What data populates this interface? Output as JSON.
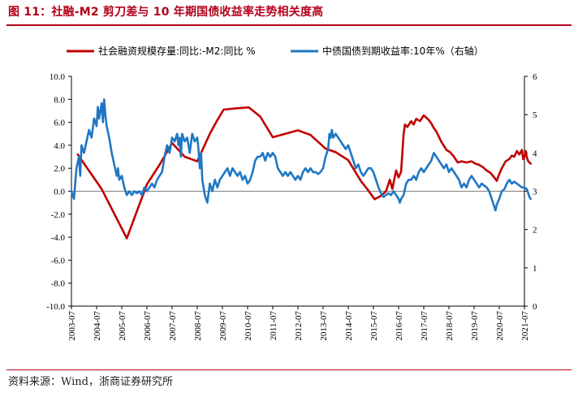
{
  "header": {
    "title": "图 11：社融-M2 剪刀差与 10 年期国债收益率走势相关度高"
  },
  "footer": {
    "source": "资料来源：Wind，浙商证券研究所"
  },
  "colors": {
    "series1": "#c00000",
    "series2": "#1f77c4",
    "title": "#b3001b"
  },
  "chart_data": {
    "type": "line",
    "title": "社融-M2 剪刀差与 10 年期国债收益率走势相关度高",
    "legend_position": "top",
    "x_tick_labels": [
      "2003-07",
      "2004-07",
      "2005-07",
      "2006-07",
      "2007-07",
      "2008-07",
      "2009-07",
      "2010-07",
      "2011-07",
      "2012-07",
      "2013-07",
      "2014-07",
      "2015-07",
      "2016-07",
      "2017-07",
      "2018-07",
      "2019-07",
      "2020-07",
      "2021-07"
    ],
    "xlim": [
      2003.5,
      2021.5
    ],
    "y_left": {
      "ylim": [
        -10,
        10
      ],
      "ticks": [
        "10.0",
        "8.0",
        "6.0",
        "4.0",
        "2.0",
        "0.0",
        "-2.0",
        "-4.0",
        "-6.0",
        "-8.0",
        "-10.0"
      ]
    },
    "y_right": {
      "ylim": [
        0,
        6
      ],
      "ticks": [
        "6",
        "5",
        "4",
        "3",
        "2",
        "1",
        "0"
      ]
    },
    "series": [
      {
        "name": "社会融资规模存量:同比:-M2:同比 %",
        "axis": "left",
        "color": "#c00000",
        "points": [
          [
            2003.75,
            3.2
          ],
          [
            2004.7,
            0.2
          ],
          [
            2005.7,
            -4.1
          ],
          [
            2006.5,
            0.6
          ],
          [
            2007.0,
            2.3
          ],
          [
            2007.5,
            4.2
          ],
          [
            2008.0,
            3.0
          ],
          [
            2008.5,
            2.6
          ],
          [
            2009.0,
            5.0
          ],
          [
            2009.3,
            6.2
          ],
          [
            2009.55,
            7.1
          ],
          [
            2010.0,
            7.2
          ],
          [
            2010.55,
            7.3
          ],
          [
            2011.0,
            6.5
          ],
          [
            2011.5,
            4.7
          ],
          [
            2012.0,
            5.0
          ],
          [
            2012.5,
            5.3
          ],
          [
            2013.0,
            4.9
          ],
          [
            2013.6,
            3.7
          ],
          [
            2014.0,
            3.4
          ],
          [
            2014.5,
            2.7
          ],
          [
            2015.0,
            0.9
          ],
          [
            2015.25,
            0.2
          ],
          [
            2015.55,
            -0.7
          ],
          [
            2015.8,
            -0.4
          ],
          [
            2016.0,
            0.0
          ],
          [
            2016.15,
            1.0
          ],
          [
            2016.25,
            0.2
          ],
          [
            2016.4,
            1.8
          ],
          [
            2016.5,
            1.2
          ],
          [
            2016.6,
            1.7
          ],
          [
            2016.7,
            5.0
          ],
          [
            2016.75,
            5.8
          ],
          [
            2016.85,
            5.6
          ],
          [
            2017.0,
            6.1
          ],
          [
            2017.1,
            5.8
          ],
          [
            2017.2,
            6.3
          ],
          [
            2017.35,
            6.1
          ],
          [
            2017.5,
            6.6
          ],
          [
            2017.6,
            6.4
          ],
          [
            2017.7,
            6.2
          ],
          [
            2017.8,
            5.9
          ],
          [
            2017.9,
            5.5
          ],
          [
            2018.0,
            5.2
          ],
          [
            2018.2,
            4.3
          ],
          [
            2018.4,
            3.6
          ],
          [
            2018.55,
            3.4
          ],
          [
            2018.7,
            3.0
          ],
          [
            2018.85,
            2.5
          ],
          [
            2019.0,
            2.6
          ],
          [
            2019.2,
            2.5
          ],
          [
            2019.4,
            2.6
          ],
          [
            2019.55,
            2.4
          ],
          [
            2019.7,
            2.3
          ],
          [
            2019.85,
            2.1
          ],
          [
            2020.0,
            1.8
          ],
          [
            2020.15,
            1.6
          ],
          [
            2020.3,
            1.2
          ],
          [
            2020.4,
            0.9
          ],
          [
            2020.5,
            1.5
          ],
          [
            2020.6,
            2.0
          ],
          [
            2020.75,
            2.6
          ],
          [
            2020.9,
            2.8
          ],
          [
            2021.0,
            3.1
          ],
          [
            2021.1,
            3.0
          ],
          [
            2021.2,
            3.5
          ],
          [
            2021.3,
            3.2
          ],
          [
            2021.4,
            3.6
          ],
          [
            2021.45,
            2.8
          ],
          [
            2021.5,
            3.0
          ],
          [
            2021.55,
            3.5
          ],
          [
            2021.6,
            2.9
          ],
          [
            2021.65,
            2.6
          ],
          [
            2021.75,
            2.4
          ]
        ]
      },
      {
        "name": "中债国债到期收益率:10年%（右轴）",
        "axis": "right",
        "color": "#1f77c4",
        "points": [
          [
            2003.5,
            3.0
          ],
          [
            2003.6,
            2.8
          ],
          [
            2003.7,
            3.6
          ],
          [
            2003.8,
            3.9
          ],
          [
            2003.85,
            3.4
          ],
          [
            2003.9,
            4.2
          ],
          [
            2004.0,
            4.0
          ],
          [
            2004.1,
            4.3
          ],
          [
            2004.2,
            4.6
          ],
          [
            2004.3,
            4.4
          ],
          [
            2004.4,
            4.9
          ],
          [
            2004.5,
            4.7
          ],
          [
            2004.55,
            5.2
          ],
          [
            2004.6,
            4.9
          ],
          [
            2004.7,
            5.3
          ],
          [
            2004.75,
            4.8
          ],
          [
            2004.8,
            5.4
          ],
          [
            2004.85,
            5.0
          ],
          [
            2004.9,
            4.7
          ],
          [
            2005.0,
            4.4
          ],
          [
            2005.1,
            4.0
          ],
          [
            2005.2,
            3.7
          ],
          [
            2005.3,
            3.4
          ],
          [
            2005.35,
            3.6
          ],
          [
            2005.4,
            3.3
          ],
          [
            2005.5,
            3.4
          ],
          [
            2005.6,
            3.1
          ],
          [
            2005.7,
            2.9
          ],
          [
            2005.8,
            3.0
          ],
          [
            2005.9,
            2.9
          ],
          [
            2006.0,
            3.0
          ],
          [
            2006.1,
            2.95
          ],
          [
            2006.2,
            3.0
          ],
          [
            2006.3,
            2.9
          ],
          [
            2006.4,
            3.1
          ],
          [
            2006.5,
            3.0
          ],
          [
            2006.6,
            3.1
          ],
          [
            2006.7,
            3.2
          ],
          [
            2006.8,
            3.1
          ],
          [
            2006.9,
            3.3
          ],
          [
            2007.0,
            3.4
          ],
          [
            2007.1,
            3.5
          ],
          [
            2007.2,
            3.9
          ],
          [
            2007.3,
            4.2
          ],
          [
            2007.4,
            4.0
          ],
          [
            2007.5,
            4.4
          ],
          [
            2007.6,
            4.3
          ],
          [
            2007.7,
            4.5
          ],
          [
            2007.75,
            4.2
          ],
          [
            2007.8,
            4.4
          ],
          [
            2007.85,
            3.9
          ],
          [
            2007.9,
            4.5
          ],
          [
            2008.0,
            4.3
          ],
          [
            2008.1,
            4.4
          ],
          [
            2008.2,
            4.0
          ],
          [
            2008.3,
            4.5
          ],
          [
            2008.4,
            4.3
          ],
          [
            2008.5,
            4.4
          ],
          [
            2008.55,
            4.1
          ],
          [
            2008.6,
            3.6
          ],
          [
            2008.65,
            4.0
          ],
          [
            2008.7,
            3.3
          ],
          [
            2008.75,
            3.1
          ],
          [
            2008.8,
            2.9
          ],
          [
            2008.85,
            2.8
          ],
          [
            2008.9,
            2.7
          ],
          [
            2009.0,
            3.2
          ],
          [
            2009.1,
            3.0
          ],
          [
            2009.2,
            3.3
          ],
          [
            2009.3,
            3.1
          ],
          [
            2009.4,
            3.3
          ],
          [
            2009.5,
            3.4
          ],
          [
            2009.6,
            3.5
          ],
          [
            2009.7,
            3.6
          ],
          [
            2009.8,
            3.4
          ],
          [
            2009.9,
            3.6
          ],
          [
            2010.0,
            3.5
          ],
          [
            2010.1,
            3.4
          ],
          [
            2010.2,
            3.5
          ],
          [
            2010.3,
            3.3
          ],
          [
            2010.4,
            3.4
          ],
          [
            2010.5,
            3.2
          ],
          [
            2010.6,
            3.3
          ],
          [
            2010.7,
            3.5
          ],
          [
            2010.8,
            3.8
          ],
          [
            2010.9,
            3.9
          ],
          [
            2011.0,
            3.9
          ],
          [
            2011.1,
            4.0
          ],
          [
            2011.2,
            3.8
          ],
          [
            2011.3,
            4.0
          ],
          [
            2011.4,
            3.9
          ],
          [
            2011.5,
            4.0
          ],
          [
            2011.6,
            3.9
          ],
          [
            2011.7,
            3.6
          ],
          [
            2011.8,
            3.5
          ],
          [
            2011.9,
            3.4
          ],
          [
            2012.0,
            3.5
          ],
          [
            2012.1,
            3.4
          ],
          [
            2012.2,
            3.5
          ],
          [
            2012.3,
            3.4
          ],
          [
            2012.4,
            3.3
          ],
          [
            2012.5,
            3.4
          ],
          [
            2012.6,
            3.3
          ],
          [
            2012.7,
            3.5
          ],
          [
            2012.8,
            3.6
          ],
          [
            2012.9,
            3.5
          ],
          [
            2013.0,
            3.6
          ],
          [
            2013.1,
            3.5
          ],
          [
            2013.2,
            3.5
          ],
          [
            2013.3,
            3.45
          ],
          [
            2013.4,
            3.5
          ],
          [
            2013.5,
            3.6
          ],
          [
            2013.6,
            3.9
          ],
          [
            2013.7,
            4.1
          ],
          [
            2013.75,
            4.5
          ],
          [
            2013.8,
            4.4
          ],
          [
            2013.85,
            4.6
          ],
          [
            2013.9,
            4.4
          ],
          [
            2014.0,
            4.5
          ],
          [
            2014.1,
            4.4
          ],
          [
            2014.2,
            4.3
          ],
          [
            2014.3,
            4.2
          ],
          [
            2014.4,
            4.1
          ],
          [
            2014.5,
            4.2
          ],
          [
            2014.6,
            4.0
          ],
          [
            2014.7,
            3.8
          ],
          [
            2014.8,
            3.6
          ],
          [
            2014.9,
            3.7
          ],
          [
            2015.0,
            3.5
          ],
          [
            2015.1,
            3.4
          ],
          [
            2015.2,
            3.5
          ],
          [
            2015.3,
            3.6
          ],
          [
            2015.4,
            3.6
          ],
          [
            2015.5,
            3.5
          ],
          [
            2015.6,
            3.3
          ],
          [
            2015.7,
            3.1
          ],
          [
            2015.8,
            2.95
          ],
          [
            2015.9,
            2.85
          ],
          [
            2016.0,
            2.9
          ],
          [
            2016.1,
            2.95
          ],
          [
            2016.2,
            2.9
          ],
          [
            2016.3,
            3.0
          ],
          [
            2016.4,
            2.9
          ],
          [
            2016.5,
            2.8
          ],
          [
            2016.55,
            2.7
          ],
          [
            2016.6,
            2.8
          ],
          [
            2016.7,
            2.9
          ],
          [
            2016.8,
            3.2
          ],
          [
            2016.9,
            3.3
          ],
          [
            2017.0,
            3.3
          ],
          [
            2017.1,
            3.4
          ],
          [
            2017.2,
            3.3
          ],
          [
            2017.3,
            3.5
          ],
          [
            2017.4,
            3.6
          ],
          [
            2017.5,
            3.5
          ],
          [
            2017.6,
            3.6
          ],
          [
            2017.7,
            3.7
          ],
          [
            2017.8,
            3.8
          ],
          [
            2017.85,
            3.9
          ],
          [
            2017.9,
            4.0
          ],
          [
            2018.0,
            3.9
          ],
          [
            2018.1,
            3.8
          ],
          [
            2018.2,
            3.7
          ],
          [
            2018.3,
            3.6
          ],
          [
            2018.4,
            3.7
          ],
          [
            2018.5,
            3.5
          ],
          [
            2018.6,
            3.6
          ],
          [
            2018.7,
            3.5
          ],
          [
            2018.8,
            3.4
          ],
          [
            2018.9,
            3.3
          ],
          [
            2019.0,
            3.1
          ],
          [
            2019.1,
            3.2
          ],
          [
            2019.2,
            3.1
          ],
          [
            2019.3,
            3.3
          ],
          [
            2019.4,
            3.4
          ],
          [
            2019.5,
            3.3
          ],
          [
            2019.6,
            3.2
          ],
          [
            2019.7,
            3.1
          ],
          [
            2019.8,
            3.2
          ],
          [
            2019.9,
            3.15
          ],
          [
            2020.0,
            3.1
          ],
          [
            2020.1,
            3.0
          ],
          [
            2020.2,
            2.8
          ],
          [
            2020.3,
            2.6
          ],
          [
            2020.35,
            2.5
          ],
          [
            2020.4,
            2.65
          ],
          [
            2020.5,
            2.8
          ],
          [
            2020.6,
            3.0
          ],
          [
            2020.7,
            3.05
          ],
          [
            2020.8,
            3.2
          ],
          [
            2020.9,
            3.3
          ],
          [
            2021.0,
            3.2
          ],
          [
            2021.1,
            3.25
          ],
          [
            2021.2,
            3.2
          ],
          [
            2021.3,
            3.15
          ],
          [
            2021.4,
            3.1
          ],
          [
            2021.5,
            3.1
          ],
          [
            2021.6,
            3.05
          ],
          [
            2021.7,
            2.85
          ],
          [
            2021.75,
            2.8
          ]
        ]
      }
    ]
  }
}
